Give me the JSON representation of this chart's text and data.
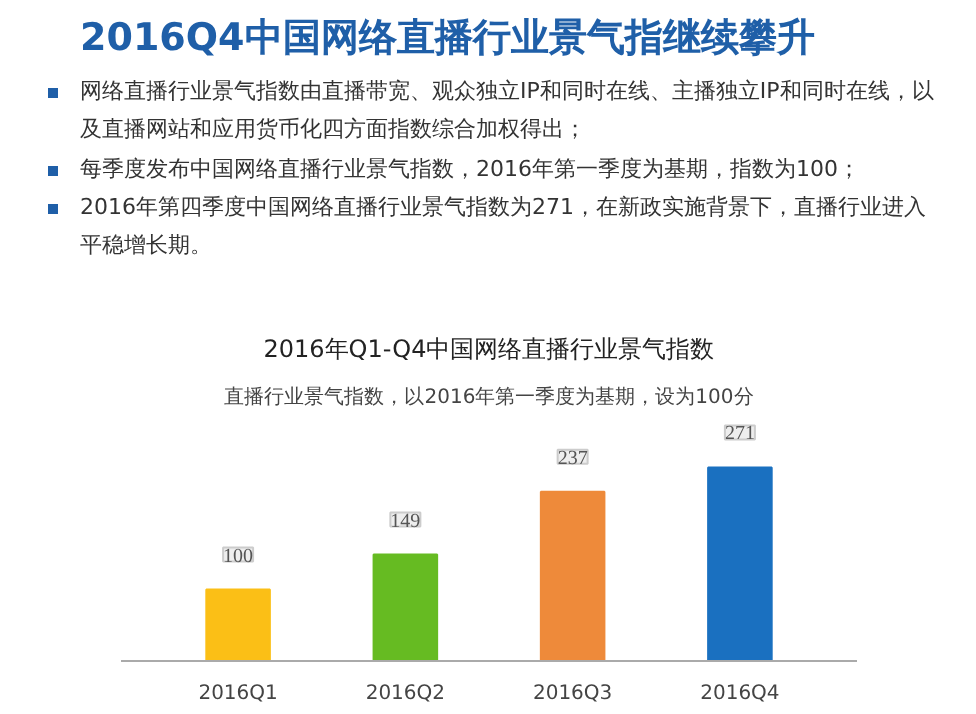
{
  "chart_data": {
    "type": "bar",
    "title": "2016年Q1-Q4中国网络直播行业景气指数",
    "subtitle": "直播行业景气指数，以2016年第一季度为基期，设为100分",
    "annotations": [
      "2016Q4中国网络直播行业景气指继续攀升",
      "网络直播行业景气指数由直播带宽、观众独立IP和同时在线、主播独立IP和同时在线，以及直播网站和应用货币化四方面指数综合加权得出；",
      "每季度发布中国网络直播行业景气指数，2016年第一季度为基期，指数为100；",
      "2016年第四季度中国网络直播行业景气指数为271，在新政实施背景下，直播行业进入平稳增长期。"
    ],
    "categories": [
      "2016Q1",
      "2016Q2",
      "2016Q3",
      "2016Q4"
    ],
    "values": [
      100,
      149,
      237,
      271
    ],
    "colors": [
      "#fbbf16",
      "#66bb22",
      "#ee8a3a",
      "#1a70c0"
    ],
    "data_labels": true,
    "grid": false
  }
}
